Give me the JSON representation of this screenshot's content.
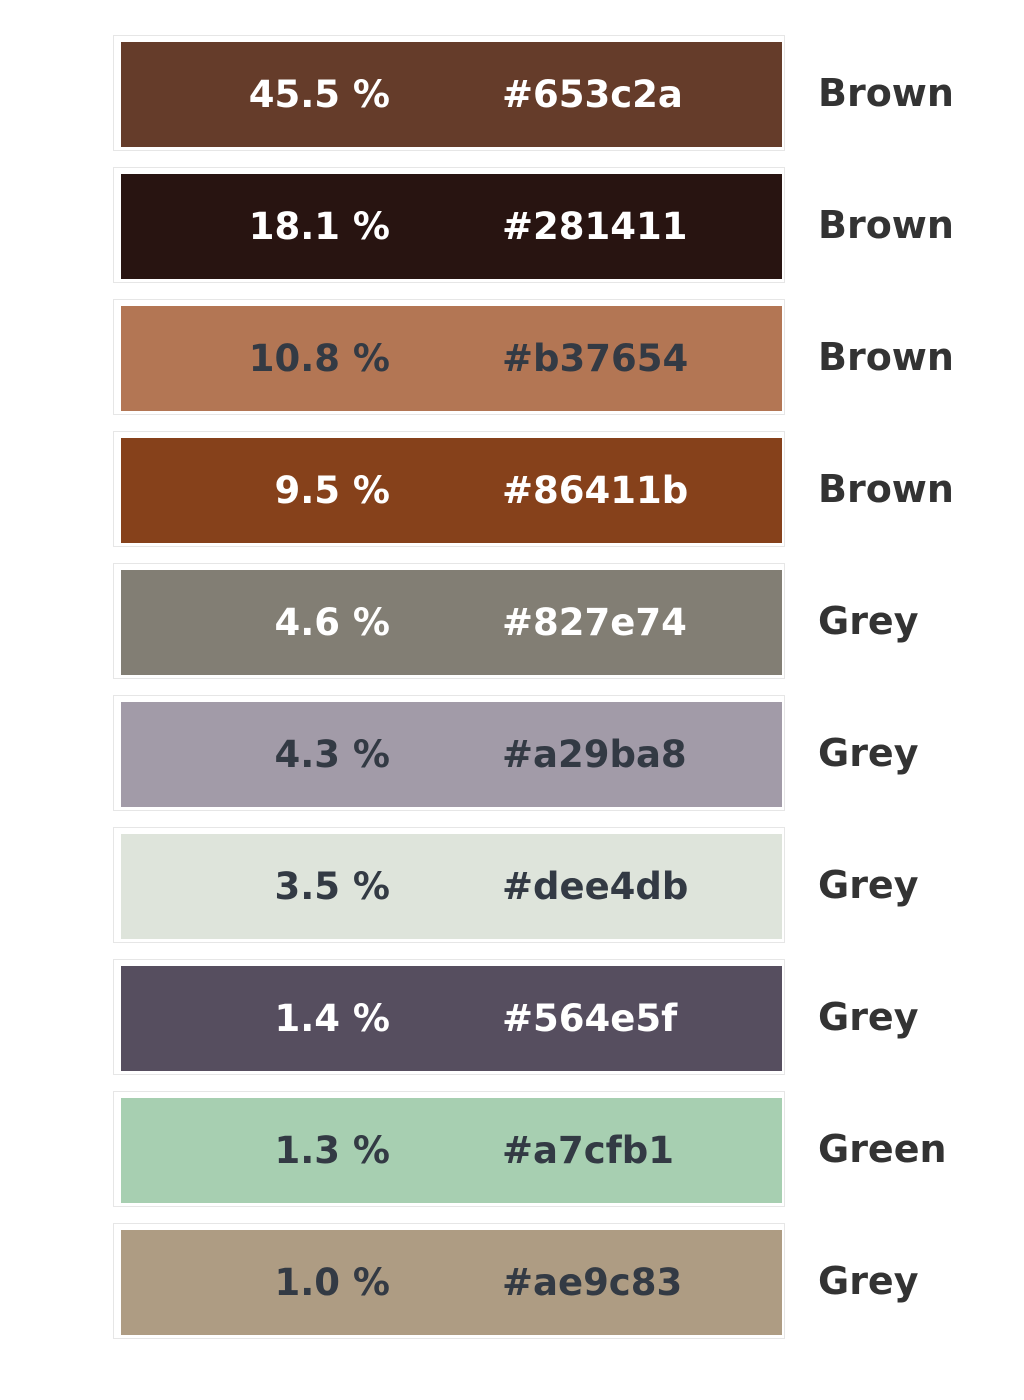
{
  "palette": [
    {
      "percent": "45.5 %",
      "hex": "#653c2a",
      "name": "Brown",
      "text_color": "#ffffff"
    },
    {
      "percent": "18.1 %",
      "hex": "#281411",
      "name": "Brown",
      "text_color": "#ffffff"
    },
    {
      "percent": "10.8 %",
      "hex": "#b37654",
      "name": "Brown",
      "text_color": "#333a44"
    },
    {
      "percent": "9.5 %",
      "hex": "#86411b",
      "name": "Brown",
      "text_color": "#ffffff"
    },
    {
      "percent": "4.6 %",
      "hex": "#827e74",
      "name": "Grey",
      "text_color": "#ffffff"
    },
    {
      "percent": "4.3 %",
      "hex": "#a29ba8",
      "name": "Grey",
      "text_color": "#333a44"
    },
    {
      "percent": "3.5 %",
      "hex": "#dee4db",
      "name": "Grey",
      "text_color": "#333a44"
    },
    {
      "percent": "1.4 %",
      "hex": "#564e5f",
      "name": "Grey",
      "text_color": "#ffffff"
    },
    {
      "percent": "1.3 %",
      "hex": "#a7cfb1",
      "name": "Green",
      "text_color": "#333a44"
    },
    {
      "percent": "1.0 %",
      "hex": "#ae9c83",
      "name": "Grey",
      "text_color": "#333a44"
    }
  ]
}
